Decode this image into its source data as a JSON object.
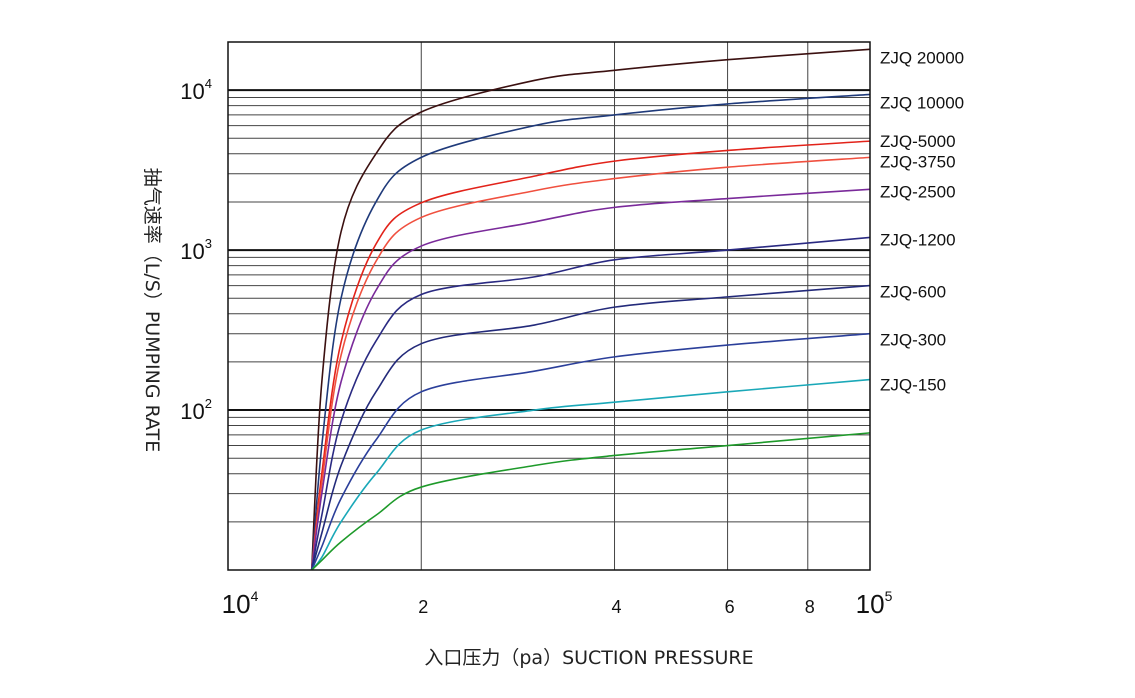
{
  "chart_data": {
    "type": "line",
    "title": "",
    "xlabel": "入口压力（pa）SUCTION PRESSURE",
    "ylabel": "抽气速率（L/S）PUMPING RATE",
    "xscale": "log",
    "yscale": "log",
    "xlim": [
      10000,
      100000
    ],
    "ylim": [
      10,
      20000
    ],
    "grid": true,
    "legend": "labels at right end of curves",
    "x_ticks": [
      {
        "value": 10000,
        "base": "10",
        "exp": "4"
      },
      {
        "value": 20000,
        "base": "2",
        "exp": ""
      },
      {
        "value": 40000,
        "base": "4",
        "exp": ""
      },
      {
        "value": 60000,
        "base": "6",
        "exp": ""
      },
      {
        "value": 80000,
        "base": "8",
        "exp": ""
      },
      {
        "value": 100000,
        "base": "10",
        "exp": "5"
      }
    ],
    "y_ticks": [
      {
        "value": 100,
        "base": "10",
        "exp": "2"
      },
      {
        "value": 1000,
        "base": "10",
        "exp": "3"
      },
      {
        "value": 10000,
        "base": "10",
        "exp": "4"
      }
    ],
    "x": [
      13500,
      14000,
      15000,
      17000,
      20000,
      30000,
      40000,
      60000,
      100000
    ],
    "series": [
      {
        "name": "ZJQ 20000",
        "color": "#3b1010",
        "values": [
          10,
          150,
          1300,
          4000,
          7300,
          11500,
          13300,
          15500,
          18000
        ]
      },
      {
        "name": "ZJQ 10000",
        "color": "#1f3a7a",
        "values": [
          10,
          60,
          500,
          2000,
          3800,
          6000,
          7000,
          8200,
          9400
        ]
      },
      {
        "name": "ZJQ-5000",
        "color": "#e2231a",
        "values": [
          10,
          40,
          265,
          1090,
          1975,
          2900,
          3600,
          4200,
          4800
        ]
      },
      {
        "name": "ZJQ-3750",
        "color": "#f0503f",
        "values": [
          10,
          35,
          220,
          850,
          1600,
          2350,
          2800,
          3300,
          3800
        ]
      },
      {
        "name": "ZJQ-2500",
        "color": "#7a2a9a",
        "values": [
          10,
          30,
          150,
          560,
          1060,
          1500,
          1850,
          2100,
          2400
        ]
      },
      {
        "name": "ZJQ-1200",
        "color": "#2a2a82",
        "values": [
          10,
          22,
          85,
          270,
          528,
          680,
          870,
          1000,
          1200
        ]
      },
      {
        "name": "ZJQ-600",
        "color": "#232a7a",
        "values": [
          10,
          17,
          45,
          130,
          260,
          340,
          440,
          510,
          600
        ]
      },
      {
        "name": "ZJQ-300",
        "color": "#2b3f9a",
        "values": [
          10,
          14,
          28,
          65,
          130,
          175,
          215,
          255,
          300
        ]
      },
      {
        "name": "ZJQ-150",
        "color": "#1aa8b8",
        "values": [
          10,
          12,
          20,
          40,
          75,
          100,
          112,
          130,
          155
        ]
      },
      {
        "name": "",
        "color": "#1e9a2a",
        "values": [
          10,
          11.5,
          15,
          22,
          33,
          45,
          52,
          60,
          72
        ]
      }
    ]
  }
}
